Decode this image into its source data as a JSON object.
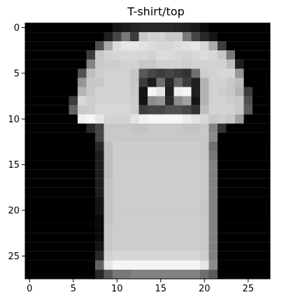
{
  "chart_data": {
    "type": "heatmap",
    "title": "T-shirt/top",
    "colormap": "gray",
    "value_range": [
      0,
      255
    ],
    "x_ticks": [
      0,
      5,
      10,
      15,
      20,
      25
    ],
    "y_ticks": [
      0,
      5,
      10,
      15,
      20,
      25
    ],
    "xlim": [
      -0.5,
      27.5
    ],
    "ylim": [
      27.5,
      -0.5
    ],
    "grid": false,
    "matrix": [
      [
        0,
        0,
        0,
        0,
        0,
        0,
        0,
        0,
        0,
        0,
        20,
        28,
        36,
        40,
        40,
        40,
        40,
        36,
        32,
        24,
        12,
        0,
        0,
        0,
        0,
        0,
        0,
        0
      ],
      [
        0,
        0,
        0,
        0,
        0,
        0,
        0,
        0,
        0,
        30,
        70,
        120,
        60,
        200,
        210,
        210,
        200,
        200,
        120,
        70,
        40,
        20,
        0,
        0,
        0,
        0,
        0,
        0
      ],
      [
        0,
        0,
        0,
        0,
        0,
        0,
        0,
        0,
        80,
        170,
        220,
        230,
        230,
        225,
        220,
        215,
        215,
        220,
        225,
        230,
        215,
        170,
        60,
        0,
        0,
        0,
        0,
        0
      ],
      [
        0,
        0,
        0,
        0,
        0,
        0,
        0,
        60,
        200,
        210,
        215,
        215,
        215,
        215,
        210,
        220,
        220,
        215,
        210,
        215,
        220,
        215,
        200,
        120,
        0,
        0,
        0,
        0
      ],
      [
        0,
        0,
        0,
        0,
        0,
        0,
        0,
        130,
        200,
        205,
        205,
        210,
        210,
        200,
        200,
        210,
        210,
        210,
        205,
        210,
        210,
        210,
        210,
        190,
        30,
        0,
        0,
        0
      ],
      [
        0,
        0,
        0,
        0,
        0,
        0,
        80,
        190,
        205,
        210,
        210,
        210,
        200,
        90,
        70,
        60,
        70,
        60,
        50,
        110,
        205,
        210,
        215,
        215,
        150,
        0,
        0,
        0
      ],
      [
        0,
        0,
        0,
        0,
        0,
        0,
        150,
        200,
        200,
        210,
        210,
        210,
        200,
        60,
        30,
        110,
        40,
        100,
        60,
        30,
        180,
        210,
        210,
        200,
        190,
        0,
        0,
        0
      ],
      [
        0,
        0,
        0,
        0,
        0,
        0,
        180,
        200,
        210,
        210,
        210,
        210,
        200,
        20,
        245,
        230,
        30,
        240,
        245,
        30,
        180,
        210,
        205,
        200,
        180,
        60,
        0,
        0
      ],
      [
        0,
        0,
        0,
        0,
        0,
        60,
        215,
        205,
        210,
        210,
        210,
        210,
        205,
        20,
        140,
        150,
        40,
        140,
        160,
        20,
        180,
        210,
        210,
        205,
        200,
        80,
        0,
        0
      ],
      [
        0,
        0,
        0,
        0,
        0,
        100,
        200,
        205,
        215,
        215,
        215,
        215,
        205,
        60,
        70,
        70,
        80,
        80,
        70,
        50,
        190,
        210,
        210,
        210,
        200,
        90,
        0,
        0
      ],
      [
        0,
        0,
        0,
        0,
        0,
        0,
        240,
        245,
        230,
        210,
        210,
        210,
        225,
        240,
        245,
        245,
        245,
        245,
        235,
        225,
        215,
        200,
        205,
        200,
        160,
        0,
        0,
        0
      ],
      [
        0,
        0,
        0,
        0,
        0,
        0,
        0,
        40,
        70,
        200,
        200,
        200,
        195,
        195,
        200,
        200,
        200,
        200,
        195,
        195,
        200,
        130,
        50,
        0,
        0,
        0,
        0,
        0
      ],
      [
        0,
        0,
        0,
        0,
        0,
        0,
        0,
        0,
        70,
        200,
        200,
        200,
        200,
        200,
        200,
        200,
        200,
        200,
        200,
        200,
        200,
        140,
        0,
        0,
        0,
        0,
        0,
        0
      ],
      [
        0,
        0,
        0,
        0,
        0,
        0,
        0,
        0,
        40,
        190,
        205,
        205,
        205,
        205,
        205,
        205,
        205,
        205,
        205,
        205,
        200,
        110,
        0,
        0,
        0,
        0,
        0,
        0
      ],
      [
        0,
        0,
        0,
        0,
        0,
        0,
        0,
        0,
        30,
        190,
        205,
        205,
        205,
        205,
        205,
        205,
        205,
        205,
        205,
        205,
        200,
        120,
        0,
        0,
        0,
        0,
        0,
        0
      ],
      [
        0,
        0,
        0,
        0,
        0,
        0,
        0,
        0,
        30,
        190,
        205,
        205,
        205,
        205,
        205,
        205,
        205,
        205,
        205,
        205,
        200,
        130,
        0,
        0,
        0,
        0,
        0,
        0
      ],
      [
        0,
        0,
        0,
        0,
        0,
        0,
        0,
        0,
        30,
        190,
        205,
        205,
        205,
        205,
        205,
        205,
        205,
        205,
        205,
        205,
        200,
        130,
        0,
        0,
        0,
        0,
        0,
        0
      ],
      [
        0,
        0,
        0,
        0,
        0,
        0,
        0,
        0,
        30,
        195,
        205,
        205,
        205,
        205,
        205,
        205,
        205,
        205,
        205,
        205,
        200,
        130,
        0,
        0,
        0,
        0,
        0,
        0
      ],
      [
        0,
        0,
        0,
        0,
        0,
        0,
        0,
        0,
        30,
        195,
        205,
        205,
        205,
        205,
        205,
        205,
        205,
        205,
        205,
        205,
        200,
        130,
        0,
        0,
        0,
        0,
        0,
        0
      ],
      [
        0,
        0,
        0,
        0,
        0,
        0,
        0,
        0,
        20,
        195,
        205,
        205,
        205,
        205,
        205,
        205,
        205,
        205,
        205,
        205,
        200,
        130,
        0,
        0,
        0,
        0,
        0,
        0
      ],
      [
        0,
        0,
        0,
        0,
        0,
        0,
        0,
        0,
        20,
        195,
        205,
        205,
        205,
        205,
        205,
        205,
        205,
        205,
        205,
        205,
        200,
        130,
        0,
        0,
        0,
        0,
        0,
        0
      ],
      [
        0,
        0,
        0,
        0,
        0,
        0,
        0,
        0,
        10,
        195,
        205,
        205,
        205,
        205,
        205,
        205,
        205,
        205,
        205,
        205,
        200,
        130,
        0,
        0,
        0,
        0,
        0,
        0
      ],
      [
        0,
        0,
        0,
        0,
        0,
        0,
        0,
        0,
        10,
        200,
        205,
        205,
        205,
        205,
        205,
        205,
        205,
        205,
        205,
        205,
        200,
        130,
        0,
        0,
        0,
        0,
        0,
        0
      ],
      [
        0,
        0,
        0,
        0,
        0,
        0,
        0,
        0,
        10,
        200,
        205,
        205,
        205,
        205,
        205,
        205,
        205,
        205,
        205,
        205,
        200,
        130,
        0,
        0,
        0,
        0,
        0,
        0
      ],
      [
        0,
        0,
        0,
        0,
        0,
        0,
        0,
        0,
        20,
        200,
        205,
        205,
        205,
        205,
        205,
        205,
        205,
        205,
        205,
        205,
        200,
        130,
        0,
        0,
        0,
        0,
        0,
        0
      ],
      [
        0,
        0,
        0,
        0,
        0,
        0,
        0,
        0,
        40,
        210,
        215,
        215,
        215,
        215,
        215,
        215,
        215,
        215,
        215,
        215,
        205,
        130,
        0,
        0,
        0,
        0,
        0,
        0
      ],
      [
        0,
        0,
        0,
        0,
        0,
        0,
        0,
        0,
        100,
        230,
        245,
        245,
        245,
        245,
        245,
        245,
        245,
        245,
        245,
        245,
        230,
        140,
        0,
        0,
        0,
        0,
        0,
        0
      ],
      [
        0,
        0,
        0,
        0,
        0,
        0,
        0,
        0,
        40,
        90,
        120,
        120,
        130,
        130,
        130,
        130,
        130,
        130,
        130,
        130,
        110,
        90,
        0,
        0,
        0,
        0,
        0,
        0
      ]
    ]
  }
}
